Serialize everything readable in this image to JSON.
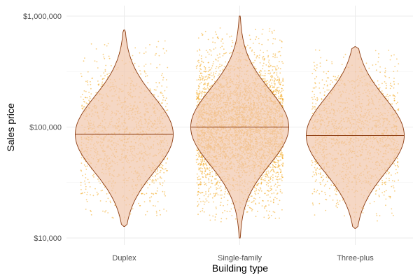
{
  "chart_data": {
    "type": "violin",
    "xlabel": "Building type",
    "ylabel": "Sales price",
    "y_scale": "log10",
    "ylim": [
      10000,
      1000000
    ],
    "grid": true,
    "y_ticks": [
      {
        "value": 10000,
        "label": "$10,000"
      },
      {
        "value": 100000,
        "label": "$100,000"
      },
      {
        "value": 1000000,
        "label": "$1,000,000"
      }
    ],
    "categories": [
      "Duplex",
      "Single-family",
      "Three-plus"
    ],
    "groups": [
      {
        "name": "Duplex",
        "median": 86000,
        "min": 12700,
        "max": 750000,
        "jitter_min": 15000,
        "jitter_max": 600000,
        "point_density": 1400
      },
      {
        "name": "Single-family",
        "median": 100000,
        "min": 10000,
        "max": 1000000,
        "jitter_min": 14000,
        "jitter_max": 800000,
        "point_density": 4200
      },
      {
        "name": "Three-plus",
        "median": 84000,
        "min": 12200,
        "max": 530000,
        "jitter_min": 14000,
        "jitter_max": 500000,
        "point_density": 1600
      }
    ],
    "colors": {
      "points": "#f2a51a",
      "violin_fill": "#f1c7ad",
      "violin_stroke": "#8b3a0e",
      "grid": "#ebebeb"
    }
  }
}
